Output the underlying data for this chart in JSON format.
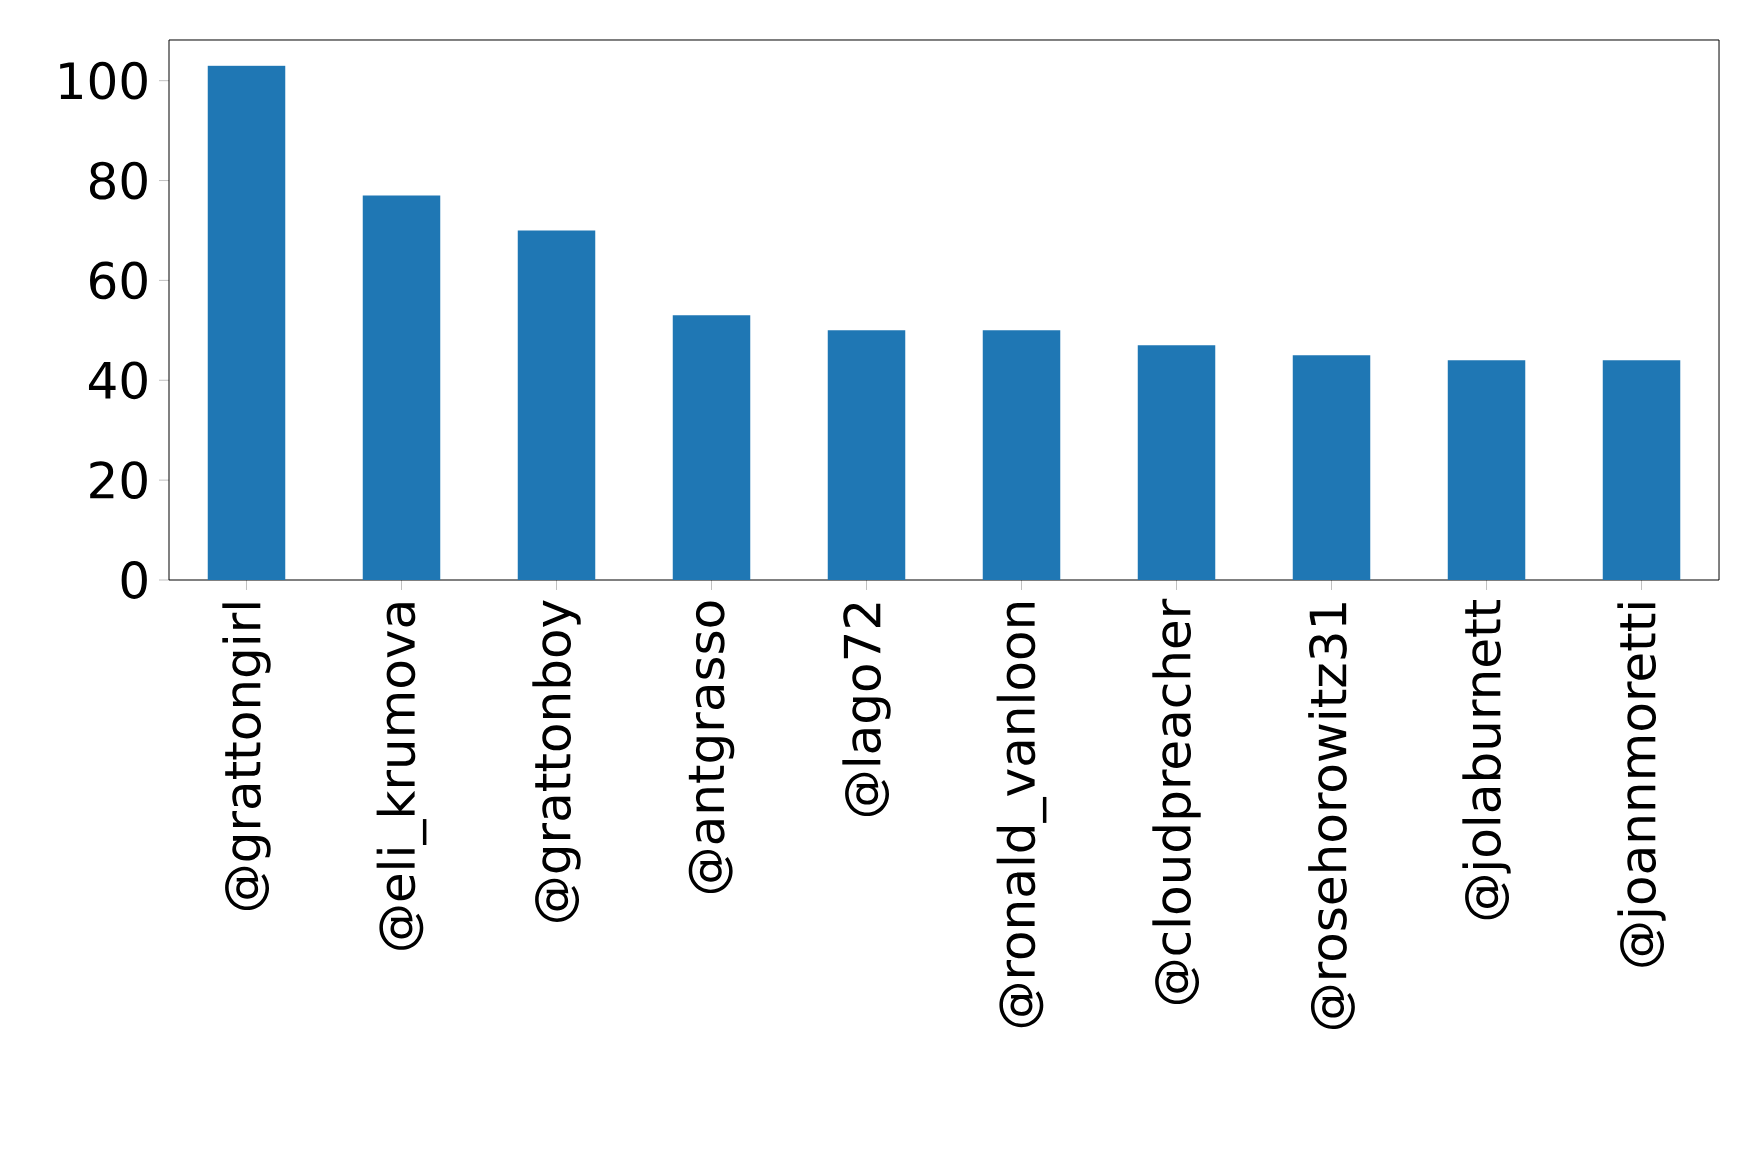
{
  "chart_data": {
    "type": "bar",
    "categories": [
      "@grattongirl",
      "@eli_krumova",
      "@grattonboy",
      "@antgrasso",
      "@lago72",
      "@ronald_vanloon",
      "@cloudpreacher",
      "@rosehorowitz31",
      "@jolaburnett",
      "@joannmoretti"
    ],
    "values": [
      103,
      77,
      70,
      53,
      50,
      50,
      47,
      45,
      44,
      44
    ],
    "color": "#1f77b4",
    "ylim": [
      0,
      108.15
    ],
    "yticks": [
      0,
      20,
      40,
      60,
      80,
      100
    ],
    "grid": false
  }
}
